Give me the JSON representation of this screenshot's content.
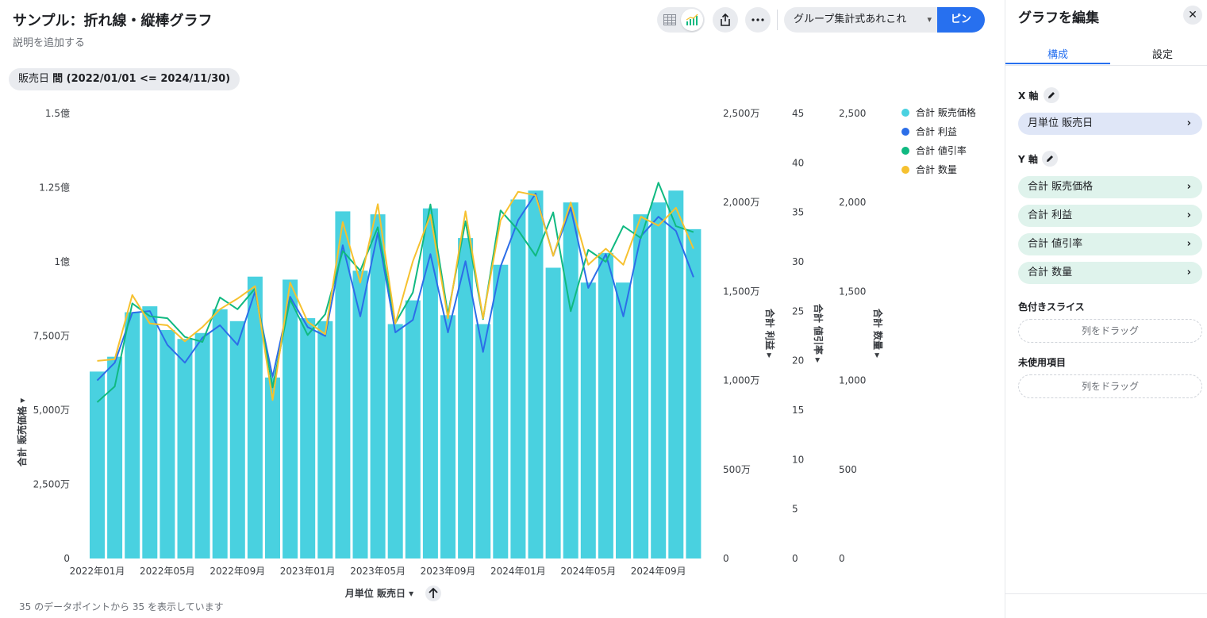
{
  "header": {
    "title": "サンプル：折れ線・縦棒グラフ",
    "description": "説明を追加する",
    "filter_label": "販売日",
    "filter_value": "間 (2022/01/01 <= 2024/11/30)",
    "group_select": "グループ集計式あれこれ",
    "pin_label": "ピン"
  },
  "footer": {
    "count": "35",
    "text": "のデータポイントから 35 を表示しています"
  },
  "panel": {
    "title": "グラフを編集",
    "tabs": [
      "構成",
      "設定"
    ],
    "x_axis_label": "X 軸",
    "x_axis_item": "月単位 販売日",
    "y_axis_label": "Y 軸",
    "y_axis_items": [
      "合計 販売価格",
      "合計 利益",
      "合計 値引率",
      "合計 数量"
    ],
    "color_slice_label": "色付きスライス",
    "color_slice_drop": "列をドラッグ",
    "unused_label": "未使用項目",
    "unused_drop": "列をドラッグ"
  },
  "colors": {
    "bar": "#49d1e0",
    "profit": "#2c6ee8",
    "discount": "#10b981",
    "quantity": "#f6c12f",
    "accent": "#2770ef"
  },
  "chart_data": {
    "type": "bar-line-combo",
    "x_label": "月単位 販売日",
    "x_tick_labels": [
      "2022年01月",
      "2022年05月",
      "2022年09月",
      "2023年01月",
      "2023年05月",
      "2023年09月",
      "2024年01月",
      "2024年05月",
      "2024年09月"
    ],
    "categories": [
      "2022-01",
      "2022-02",
      "2022-03",
      "2022-04",
      "2022-05",
      "2022-06",
      "2022-07",
      "2022-08",
      "2022-09",
      "2022-10",
      "2022-11",
      "2022-12",
      "2023-01",
      "2023-02",
      "2023-03",
      "2023-04",
      "2023-05",
      "2023-06",
      "2023-07",
      "2023-08",
      "2023-09",
      "2023-10",
      "2023-11",
      "2023-12",
      "2024-01",
      "2024-02",
      "2024-03",
      "2024-04",
      "2024-05",
      "2024-06",
      "2024-07",
      "2024-08",
      "2024-09",
      "2024-10",
      "2024-11"
    ],
    "series": [
      {
        "name": "合計 販売価格",
        "kind": "bar",
        "axis": "合計 販売価格",
        "values": [
          63000000,
          68000000,
          83000000,
          85000000,
          77000000,
          74000000,
          76000000,
          84000000,
          80000000,
          95000000,
          61000000,
          94000000,
          81000000,
          80000000,
          117000000,
          97000000,
          116000000,
          79000000,
          87000000,
          118000000,
          82000000,
          108000000,
          79000000,
          99000000,
          121000000,
          124000000,
          98000000,
          120000000,
          93000000,
          103000000,
          93000000,
          116000000,
          120000000,
          124000000,
          111000000
        ]
      },
      {
        "name": "合計 利益",
        "kind": "line",
        "axis": "合計 利益",
        "values": [
          10000000,
          11000000,
          13800000,
          13900000,
          12000000,
          11000000,
          12400000,
          13100000,
          12000000,
          15000000,
          10200000,
          14700000,
          13000000,
          12500000,
          17600000,
          13600000,
          18300000,
          12700000,
          13400000,
          17100000,
          12700000,
          16700000,
          11600000,
          16400000,
          19000000,
          20500000,
          17000000,
          19700000,
          15200000,
          17100000,
          13600000,
          18100000,
          19200000,
          18400000,
          15800000
        ]
      },
      {
        "name": "合計 値引率",
        "kind": "line",
        "axis": "合計 値引率",
        "values": [
          15.8,
          17.4,
          25.8,
          24.5,
          24.3,
          22.4,
          21.9,
          26.4,
          25.2,
          27.3,
          17.3,
          26.2,
          22.6,
          24.7,
          31.1,
          29.1,
          33.5,
          23.8,
          26.9,
          35.8,
          24.7,
          34.1,
          24.2,
          35.2,
          33.2,
          30.6,
          35.0,
          25.0,
          31.2,
          30.0,
          33.6,
          32.4,
          38.0,
          33.6,
          33.0
        ]
      },
      {
        "name": "合計 数量",
        "kind": "line",
        "axis": "合計 数量",
        "values": [
          1110,
          1120,
          1480,
          1320,
          1310,
          1220,
          1300,
          1400,
          1460,
          1530,
          890,
          1550,
          1330,
          1260,
          1890,
          1550,
          1990,
          1320,
          1670,
          1930,
          1350,
          1950,
          1350,
          1900,
          2060,
          2040,
          1700,
          2000,
          1650,
          1740,
          1650,
          1920,
          1870,
          1970,
          1740
        ]
      }
    ],
    "axes": [
      {
        "name": "合計 販売価格",
        "range": [
          0,
          150000000
        ],
        "ticks": [
          "0",
          "2,500万",
          "5,000万",
          "7,500万",
          "1億",
          "1.25億",
          "1.5億"
        ]
      },
      {
        "name": "合計 利益",
        "range": [
          0,
          25000000
        ],
        "ticks": [
          "0",
          "500万",
          "1,000万",
          "1,500万",
          "2,000万",
          "2,500万"
        ]
      },
      {
        "name": "合計 値引率",
        "range": [
          0,
          45
        ],
        "ticks": [
          "0",
          "5",
          "10",
          "15",
          "20",
          "25",
          "30",
          "35",
          "40",
          "45"
        ]
      },
      {
        "name": "合計 数量",
        "range": [
          0,
          2500
        ],
        "ticks": [
          "0",
          "500",
          "1,000",
          "1,500",
          "2,000",
          "2,500"
        ]
      }
    ],
    "legend": [
      "合計 販売価格",
      "合計 利益",
      "合計 値引率",
      "合計 数量"
    ],
    "legend_position": "top-right",
    "grid": false
  }
}
